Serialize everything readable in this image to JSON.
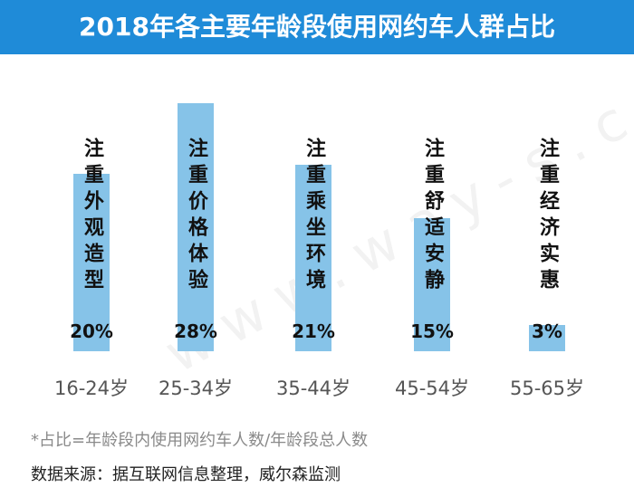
{
  "chart_data": {
    "type": "bar",
    "title": "2018年各主要年龄段使用网约车人群占比",
    "categories": [
      "16-24岁",
      "25-34岁",
      "35-44岁",
      "45-54岁",
      "55-65岁"
    ],
    "values": [
      20,
      28,
      21,
      15,
      3
    ],
    "value_labels": [
      "20%",
      "28%",
      "21%",
      "15%",
      "3%"
    ],
    "annotations": [
      "注重外观造型",
      "注重价格体验",
      "注重乘坐环境",
      "注重舒适安静",
      "注重经济实惠"
    ],
    "color": "#86c3e8",
    "footnote": "*占比=年龄段内使用网约车人数/年龄段总人数",
    "source": "数据来源：据互联网信息整理，威尔森监测",
    "watermark": "www.way-s.cn"
  }
}
